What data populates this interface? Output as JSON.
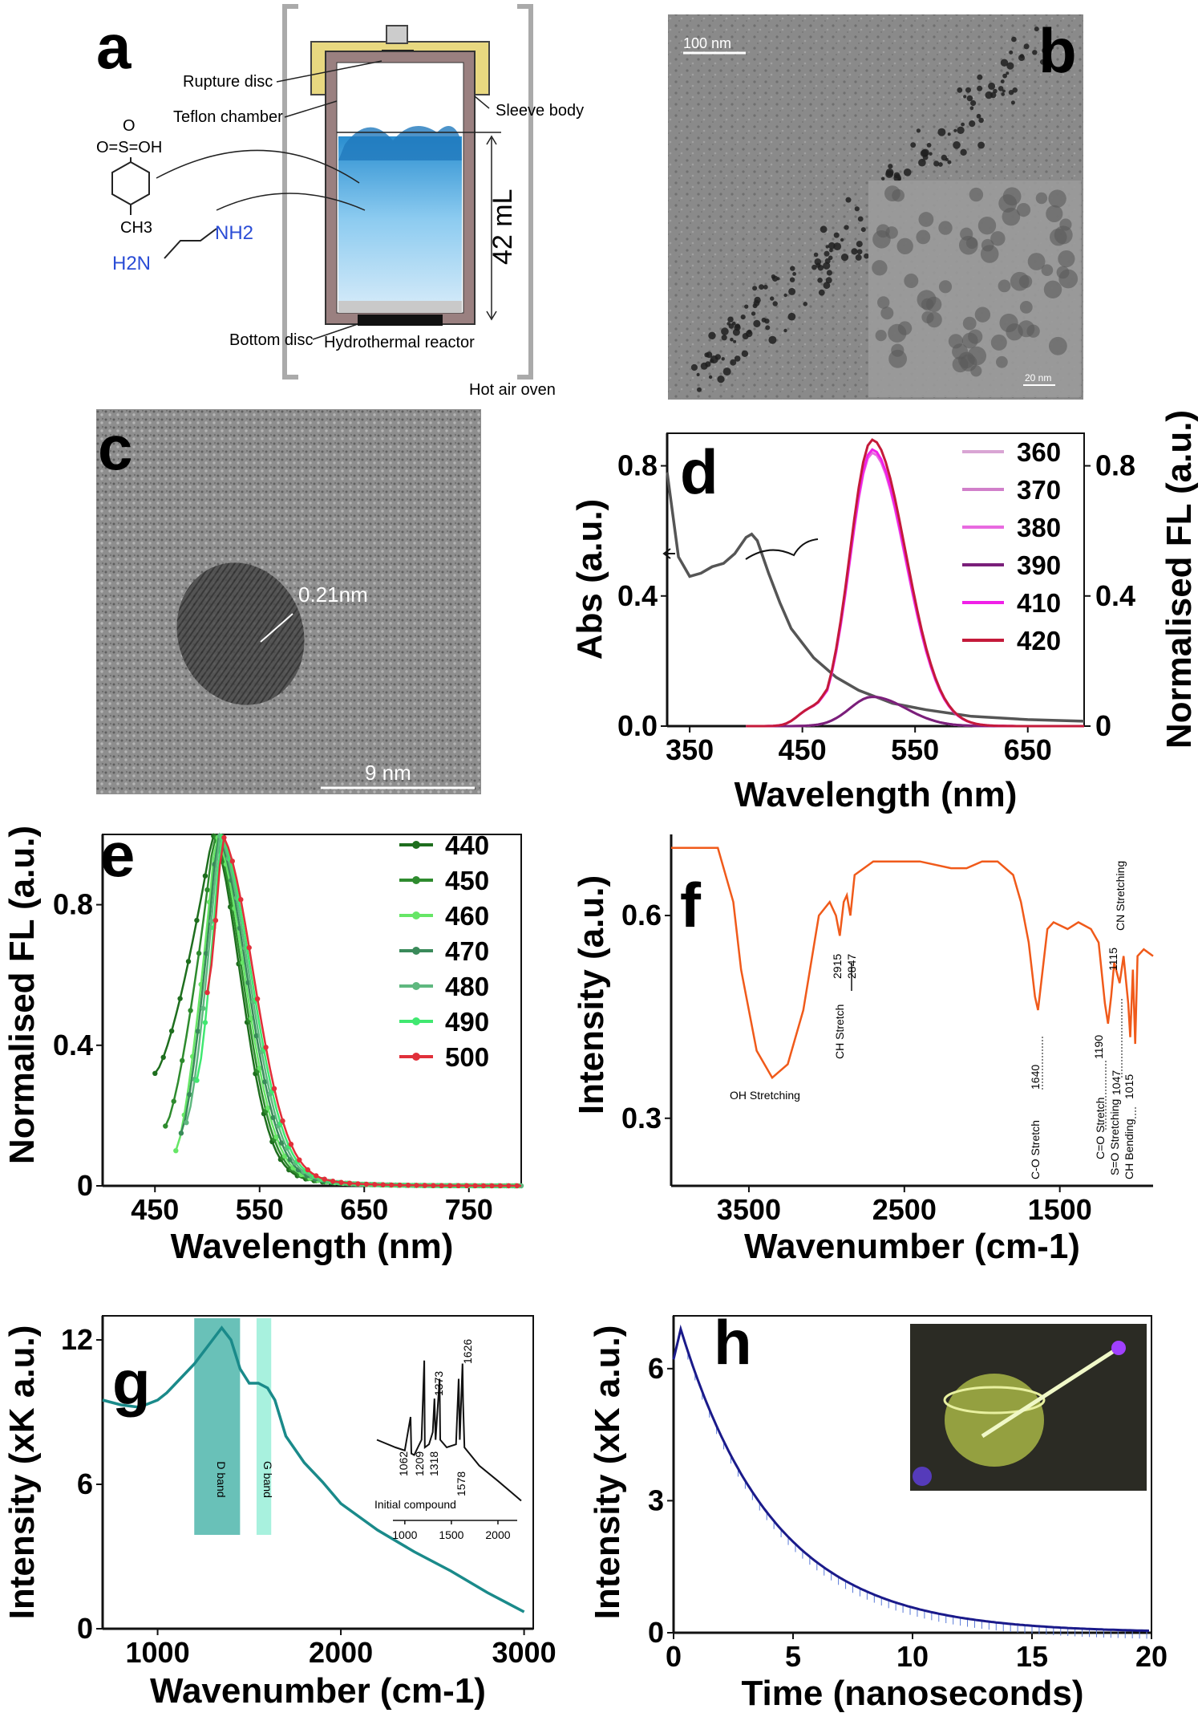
{
  "panels": {
    "a": {
      "letter": "a",
      "labels": {
        "rupture": "Rupture disc",
        "teflon": "Teflon chamber",
        "sleeve": "Sleeve body",
        "volume": "42 mL",
        "bottom": "Bottom disc",
        "reactor": "Hydrothermal reactor",
        "oven": "Hot air oven"
      },
      "chem": {
        "so3h": "O=S=OH",
        "o_top": "O",
        "ch3": "CH3",
        "nh2": "NH2",
        "h2n": "H2N"
      }
    },
    "b": {
      "letter": "b",
      "scale_main": "100 nm",
      "scale_inset": "20 nm"
    },
    "c": {
      "letter": "c",
      "lattice": "0.21nm",
      "scale": "9 nm"
    },
    "d": {
      "letter": "d"
    },
    "e": {
      "letter": "e"
    },
    "f": {
      "letter": "f"
    },
    "g": {
      "letter": "g"
    },
    "h": {
      "letter": "h"
    }
  },
  "chart_data": [
    {
      "panel": "d",
      "type": "line",
      "xlabel": "Wavelength (nm)",
      "ylabel": "Abs (a.u.)",
      "ylabel_right": "Normalised FL (a.u.)",
      "xlim": [
        330,
        700
      ],
      "ylim": [
        0,
        0.9
      ],
      "xticks": [
        "350",
        "450",
        "550",
        "650"
      ],
      "yticks_left": [
        "0.0",
        "0.4",
        "0.8"
      ],
      "yticks_right": [
        "0",
        "0.4",
        "0.8"
      ],
      "absorbance": {
        "color": "#555555",
        "x": [
          330,
          340,
          350,
          360,
          370,
          380,
          390,
          400,
          405,
          410,
          420,
          430,
          440,
          460,
          480,
          500,
          530,
          560,
          600,
          650,
          700
        ],
        "y": [
          0.78,
          0.52,
          0.46,
          0.47,
          0.49,
          0.5,
          0.53,
          0.58,
          0.59,
          0.57,
          0.47,
          0.38,
          0.3,
          0.21,
          0.15,
          0.11,
          0.07,
          0.05,
          0.03,
          0.02,
          0.015
        ]
      },
      "series": [
        {
          "name": "360",
          "color": "#d9a5d4",
          "peak": 0.09
        },
        {
          "name": "370",
          "color": "#d17fca",
          "peak": 0.09
        },
        {
          "name": "380",
          "color": "#e86ae0",
          "peak": 0.84
        },
        {
          "name": "390",
          "color": "#7a1f7a",
          "peak": 0.09
        },
        {
          "name": "410",
          "color": "#f020e8",
          "peak": 0.85
        },
        {
          "name": "420",
          "color": "#c41a3a",
          "peak": 0.88
        }
      ]
    },
    {
      "panel": "e",
      "type": "line",
      "xlabel": "Wavelength (nm)",
      "ylabel": "Normalised FL (a.u.)",
      "xlim": [
        400,
        800
      ],
      "ylim": [
        0,
        1.0
      ],
      "xticks": [
        "450",
        "550",
        "650",
        "750"
      ],
      "yticks": [
        "0",
        "0.4",
        "0.8"
      ],
      "series": [
        {
          "name": "440",
          "color": "#1e6e1e",
          "start": 450,
          "start_y": 0.32
        },
        {
          "name": "450",
          "color": "#2e8b2e",
          "start": 460,
          "start_y": 0.17
        },
        {
          "name": "460",
          "color": "#66e666",
          "start": 470,
          "start_y": 0.1
        },
        {
          "name": "470",
          "color": "#3a8a5a",
          "start": 475,
          "start_y": 0.15
        },
        {
          "name": "480",
          "color": "#5fb87f",
          "start": 480,
          "start_y": 0.18
        },
        {
          "name": "490",
          "color": "#40e870",
          "start": 490,
          "start_y": 0.3
        },
        {
          "name": "500",
          "color": "#e0303a",
          "start": 500,
          "start_y": 0.55
        }
      ]
    },
    {
      "panel": "f",
      "type": "line",
      "xlabel": "Wavenumber (cm-1)",
      "ylabel": "Intensity (a.u.)",
      "xlim": [
        4000,
        900
      ],
      "ylim": [
        0.2,
        0.72
      ],
      "xticks": [
        "3500",
        "2500",
        "1500"
      ],
      "yticks": [
        "0.3",
        "0.6"
      ],
      "color": "#f05a1a",
      "x": [
        4000,
        3700,
        3600,
        3550,
        3450,
        3350,
        3250,
        3150,
        3050,
        2980,
        2940,
        2915,
        2890,
        2870,
        2847,
        2820,
        2700,
        2400,
        2200,
        2100,
        2000,
        1900,
        1800,
        1750,
        1700,
        1660,
        1640,
        1620,
        1580,
        1540,
        1450,
        1380,
        1300,
        1250,
        1210,
        1190,
        1170,
        1150,
        1115,
        1090,
        1060,
        1047,
        1030,
        1015,
        1000,
        960,
        900
      ],
      "y": [
        0.7,
        0.7,
        0.62,
        0.52,
        0.4,
        0.36,
        0.38,
        0.46,
        0.6,
        0.62,
        0.6,
        0.57,
        0.62,
        0.63,
        0.6,
        0.66,
        0.68,
        0.68,
        0.67,
        0.67,
        0.68,
        0.68,
        0.66,
        0.62,
        0.56,
        0.48,
        0.46,
        0.5,
        0.58,
        0.59,
        0.58,
        0.59,
        0.58,
        0.56,
        0.47,
        0.44,
        0.48,
        0.53,
        0.5,
        0.54,
        0.47,
        0.42,
        0.52,
        0.41,
        0.54,
        0.55,
        0.54
      ],
      "annotations": [
        "OH Stretching",
        "CH Stretch",
        "2915",
        "2847",
        "C-O Stretch",
        "1640",
        "1190",
        "C=O Stretch",
        "S=O Stretching",
        "1047",
        "CH Bending",
        "1015",
        "1115",
        "CN Stretching"
      ]
    },
    {
      "panel": "g",
      "type": "line",
      "xlabel": "Wavenumber (cm-1)",
      "ylabel": "Intensity (xK a.u.)",
      "xlim": [
        700,
        3050
      ],
      "ylim": [
        0,
        13
      ],
      "xticks": [
        "1000",
        "2000",
        "3000"
      ],
      "yticks": [
        "0",
        "6",
        "12"
      ],
      "color": "#1a8a8a",
      "x": [
        700,
        800,
        900,
        1000,
        1050,
        1100,
        1200,
        1300,
        1350,
        1400,
        1450,
        1500,
        1550,
        1600,
        1640,
        1700,
        1800,
        1900,
        2000,
        2200,
        2400,
        2600,
        2800,
        3000
      ],
      "y": [
        9.5,
        9.3,
        9.2,
        9.5,
        9.8,
        10.2,
        11.0,
        12.0,
        12.5,
        12.0,
        10.8,
        10.2,
        10.2,
        10.0,
        9.5,
        8.0,
        6.9,
        6.1,
        5.2,
        4.1,
        3.2,
        2.4,
        1.5,
        0.7
      ],
      "bands": [
        {
          "name": "D band",
          "color": "#2aa79a"
        },
        {
          "name": "G band",
          "color": "#6ee8c8"
        }
      ],
      "inset": {
        "title": "Initial compound",
        "xticks": [
          "1000",
          "1500",
          "2000"
        ],
        "peaks": [
          "1062",
          "1209",
          "1318",
          "1373",
          "1578",
          "1626"
        ]
      }
    },
    {
      "panel": "h",
      "type": "line",
      "xlabel": "Time (nanoseconds)",
      "ylabel": "Intensity (xK a.u.)",
      "xlim": [
        0,
        20
      ],
      "ylim": [
        0,
        7.2
      ],
      "xticks": [
        "0",
        "5",
        "10",
        "15",
        "20"
      ],
      "yticks": [
        "0",
        "3",
        "6"
      ],
      "color": "#1a1a8a",
      "decay": {
        "amplitude": 6.9,
        "tau_ns": 3.9,
        "peak_time_ns": 0.3
      }
    }
  ]
}
